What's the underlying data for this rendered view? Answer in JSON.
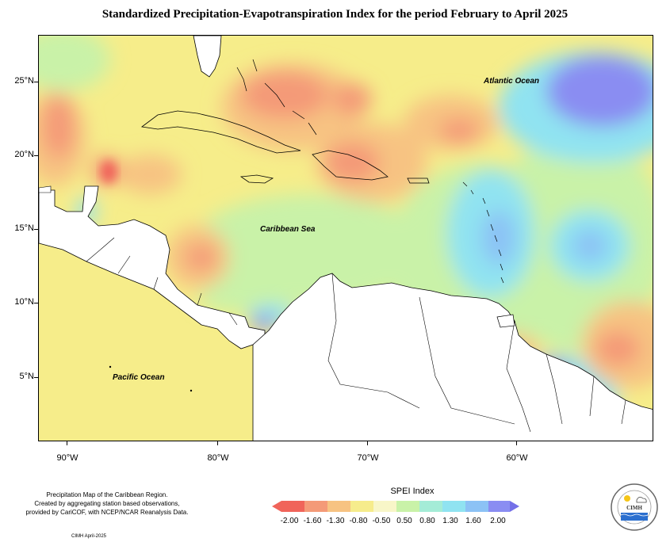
{
  "title": "Standardized Precipitation-Evapotranspiration Index for the period February to April 2025",
  "axes": {
    "lat_labels": [
      "25°N",
      "20°N",
      "15°N",
      "10°N",
      "5°N"
    ],
    "lon_labels": [
      "90°W",
      "80°W",
      "70°W",
      "60°W"
    ]
  },
  "map_labels": {
    "atlantic": "Atlantic Ocean",
    "caribbean": "Caribbean Sea",
    "pacific": "Pacific Ocean"
  },
  "credit": {
    "line1": "Precipitation Map of the Caribbean Region.",
    "line2": "Created by aggregating station based observations,",
    "line3": "provided by CariCOF, with NCEP/NCAR Reanalysis Data.",
    "date": "CIMH April-2025"
  },
  "legend": {
    "title": "SPEI Index",
    "labels": [
      "-2.00",
      "-1.60",
      "-1.30",
      "-0.80",
      "-0.50",
      "0.50",
      "0.80",
      "1.30",
      "1.60",
      "2.00"
    ],
    "colors": [
      "#f0645a",
      "#f49a78",
      "#f7c382",
      "#f6ec8c",
      "#f8f6c8",
      "#c9f2a8",
      "#a4ecd7",
      "#90e3f1",
      "#8cc2f5",
      "#8a8df2",
      "#7470e8"
    ]
  },
  "logo": {
    "text": "CIMH"
  },
  "colors": {
    "land": "#ffffff",
    "neutral": "#f6ed8a",
    "dry": "#f49a78",
    "very_dry": "#f0645a",
    "wet": "#90e3f1",
    "very_wet": "#7470e8"
  }
}
